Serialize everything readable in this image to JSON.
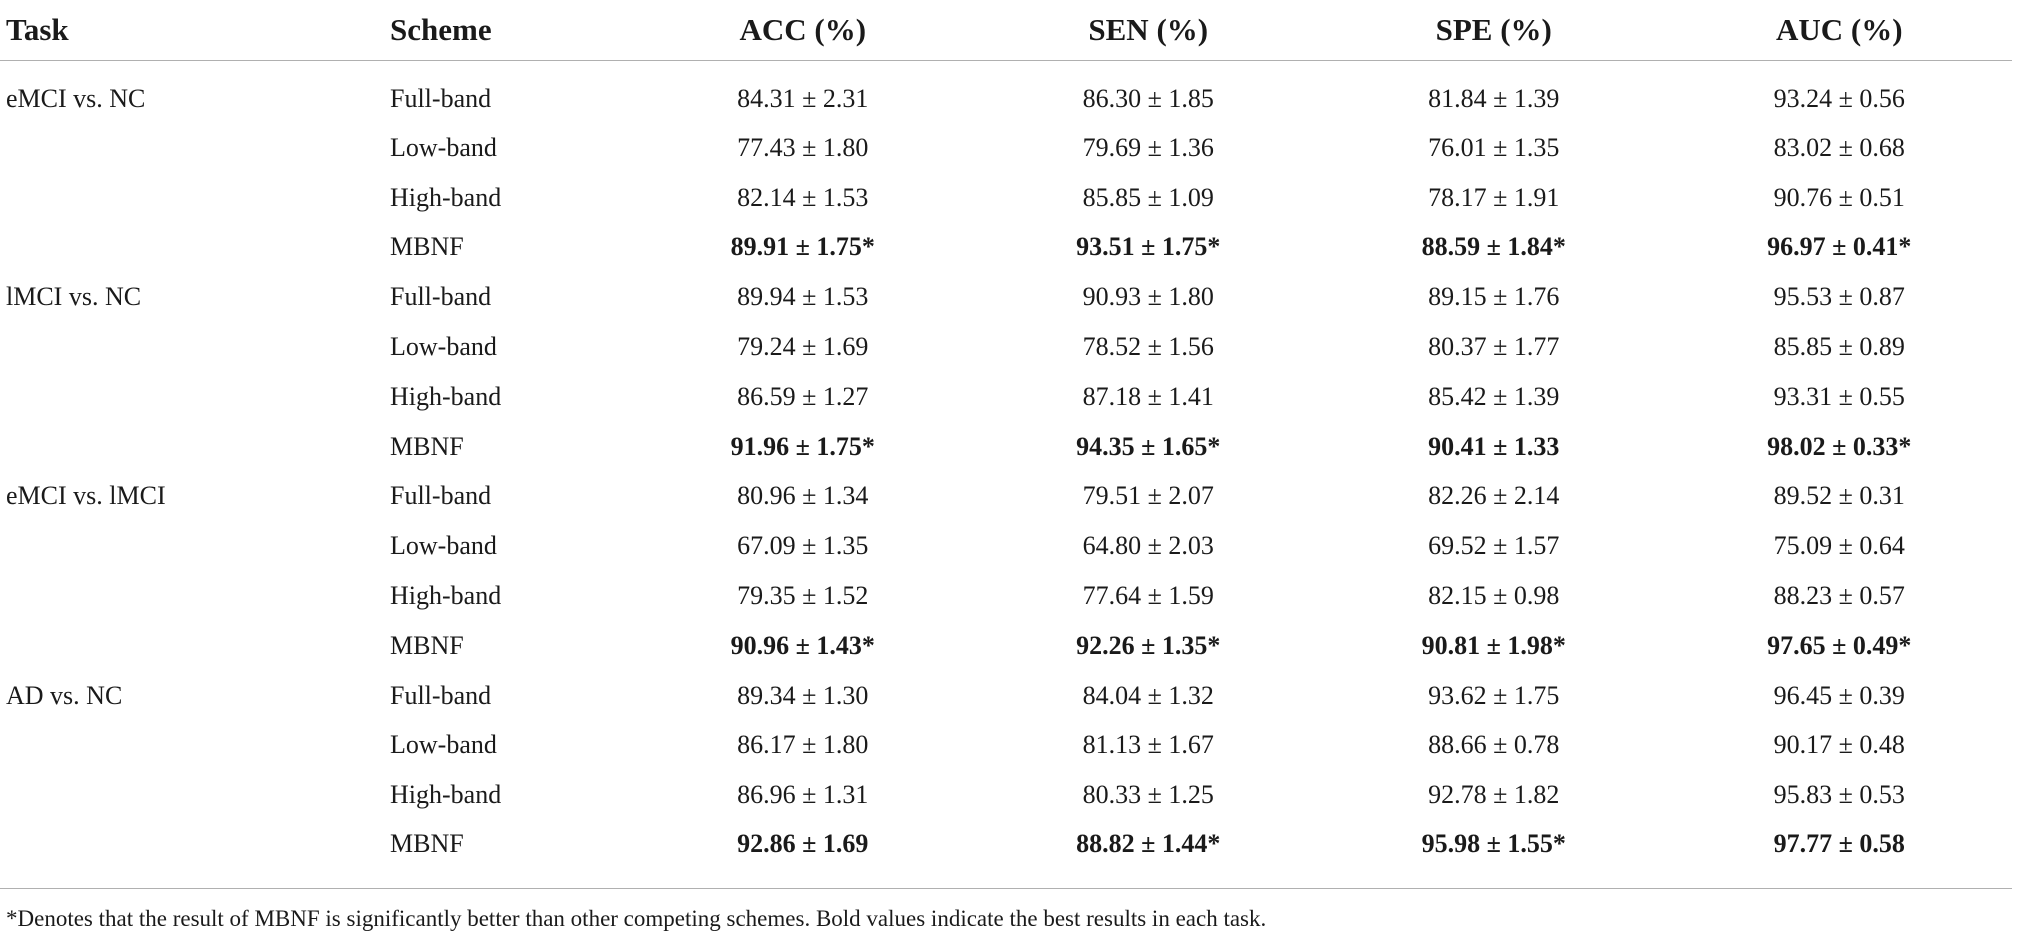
{
  "table": {
    "headers": [
      "Task",
      "Scheme",
      "ACC (%)",
      "SEN (%)",
      "SPE (%)",
      "AUC (%)"
    ],
    "groups": [
      {
        "task": "eMCI vs. NC",
        "rows": [
          {
            "scheme": "Full-band",
            "acc": "84.31 ± 2.31",
            "sen": "86.30 ± 1.85",
            "spe": "81.84 ± 1.39",
            "auc": "93.24 ± 0.56"
          },
          {
            "scheme": "Low-band",
            "acc": "77.43 ± 1.80",
            "sen": "79.69 ± 1.36",
            "spe": "76.01 ± 1.35",
            "auc": "83.02 ± 0.68"
          },
          {
            "scheme": "High-band",
            "acc": "82.14 ± 1.53",
            "sen": "85.85 ± 1.09",
            "spe": "78.17 ± 1.91",
            "auc": "90.76 ± 0.51"
          },
          {
            "scheme": "MBNF",
            "acc": "89.91 ± 1.75*",
            "sen": "93.51 ± 1.75*",
            "spe": "88.59 ± 1.84*",
            "auc": "96.97 ± 0.41*"
          }
        ]
      },
      {
        "task": "lMCI vs. NC",
        "rows": [
          {
            "scheme": "Full-band",
            "acc": "89.94 ± 1.53",
            "sen": "90.93 ± 1.80",
            "spe": "89.15 ± 1.76",
            "auc": "95.53 ± 0.87"
          },
          {
            "scheme": "Low-band",
            "acc": "79.24 ± 1.69",
            "sen": "78.52 ± 1.56",
            "spe": "80.37 ± 1.77",
            "auc": "85.85 ± 0.89"
          },
          {
            "scheme": "High-band",
            "acc": "86.59 ± 1.27",
            "sen": "87.18 ± 1.41",
            "spe": "85.42 ± 1.39",
            "auc": "93.31 ± 0.55"
          },
          {
            "scheme": "MBNF",
            "acc": "91.96 ± 1.75*",
            "sen": "94.35 ± 1.65*",
            "spe": "90.41 ± 1.33",
            "auc": "98.02 ± 0.33*"
          }
        ]
      },
      {
        "task": "eMCI vs. lMCI",
        "rows": [
          {
            "scheme": "Full-band",
            "acc": "80.96 ± 1.34",
            "sen": "79.51 ± 2.07",
            "spe": "82.26 ± 2.14",
            "auc": "89.52 ± 0.31"
          },
          {
            "scheme": "Low-band",
            "acc": "67.09 ± 1.35",
            "sen": "64.80 ± 2.03",
            "spe": "69.52 ± 1.57",
            "auc": "75.09 ± 0.64"
          },
          {
            "scheme": "High-band",
            "acc": "79.35 ± 1.52",
            "sen": "77.64 ± 1.59",
            "spe": "82.15 ± 0.98",
            "auc": "88.23 ± 0.57"
          },
          {
            "scheme": "MBNF",
            "acc": "90.96 ± 1.43*",
            "sen": "92.26 ± 1.35*",
            "spe": "90.81 ± 1.98*",
            "auc": "97.65 ± 0.49*"
          }
        ]
      },
      {
        "task": "AD vs. NC",
        "rows": [
          {
            "scheme": "Full-band",
            "acc": "89.34 ± 1.30",
            "sen": "84.04 ± 1.32",
            "spe": "93.62 ± 1.75",
            "auc": "96.45 ± 0.39"
          },
          {
            "scheme": "Low-band",
            "acc": "86.17 ± 1.80",
            "sen": "81.13 ± 1.67",
            "spe": "88.66 ± 0.78",
            "auc": "90.17 ± 0.48"
          },
          {
            "scheme": "High-band",
            "acc": "86.96 ± 1.31",
            "sen": "80.33 ± 1.25",
            "spe": "92.78 ± 1.82",
            "auc": "95.83 ± 0.53"
          },
          {
            "scheme": "MBNF",
            "acc": "92.86 ± 1.69",
            "sen": "88.82 ± 1.44*",
            "spe": "95.98 ± 1.55*",
            "auc": "97.77 ± 0.58"
          }
        ]
      }
    ]
  },
  "footnote": "*Denotes that the result of MBNF is significantly better than other competing schemes. Bold values indicate the best results in each task."
}
